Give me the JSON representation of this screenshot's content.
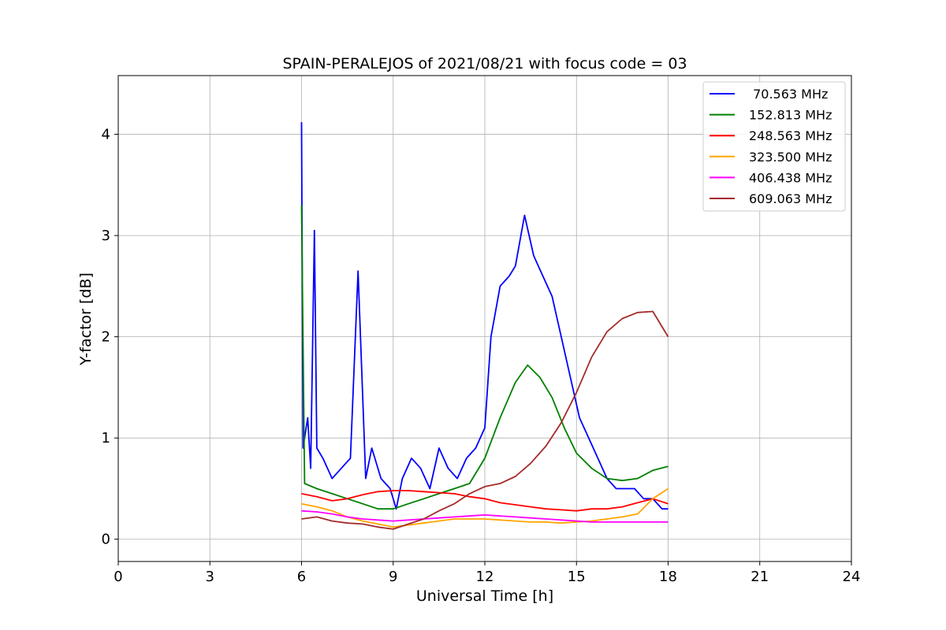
{
  "chart_data": {
    "type": "line",
    "title": "SPAIN-PERALEJOS of 2021/08/21 with focus code = 03",
    "xlabel": "Universal Time [h]",
    "ylabel": "Y-factor [dB]",
    "xlim": [
      0,
      24
    ],
    "ylim": [
      -0.22,
      4.58
    ],
    "xticks": [
      0,
      3,
      6,
      9,
      12,
      15,
      18,
      21,
      24
    ],
    "yticks": [
      0,
      1,
      2,
      3,
      4
    ],
    "grid": true,
    "legend_position": "top-right",
    "series": [
      {
        "name": " 70.563 MHz",
        "color": "#0000ff",
        "x": [
          6.0,
          6.05,
          6.2,
          6.3,
          6.42,
          6.5,
          6.7,
          7.0,
          7.3,
          7.6,
          7.85,
          8.1,
          8.3,
          8.6,
          8.9,
          9.1,
          9.3,
          9.6,
          9.9,
          10.2,
          10.5,
          10.8,
          11.1,
          11.4,
          11.7,
          12.0,
          12.2,
          12.5,
          12.8,
          13.0,
          13.3,
          13.6,
          13.9,
          14.2,
          14.5,
          14.8,
          15.1,
          15.4,
          15.7,
          16.0,
          16.3,
          16.6,
          16.9,
          17.2,
          17.5,
          17.8,
          18.0
        ],
        "y": [
          4.12,
          0.9,
          1.2,
          0.7,
          3.05,
          0.9,
          0.8,
          0.6,
          0.7,
          0.8,
          2.65,
          0.6,
          0.9,
          0.6,
          0.5,
          0.3,
          0.6,
          0.8,
          0.7,
          0.5,
          0.9,
          0.7,
          0.6,
          0.8,
          0.9,
          1.1,
          2.0,
          2.5,
          2.6,
          2.7,
          3.2,
          2.8,
          2.6,
          2.4,
          2.0,
          1.6,
          1.2,
          1.0,
          0.8,
          0.6,
          0.5,
          0.5,
          0.5,
          0.4,
          0.4,
          0.3,
          0.3
        ]
      },
      {
        "name": "152.813 MHz",
        "color": "#008000",
        "x": [
          6.0,
          6.1,
          6.5,
          7.0,
          7.5,
          8.0,
          8.5,
          9.0,
          9.5,
          10.0,
          10.5,
          11.0,
          11.5,
          12.0,
          12.5,
          13.0,
          13.4,
          13.8,
          14.2,
          14.6,
          15.0,
          15.5,
          16.0,
          16.5,
          17.0,
          17.5,
          18.0
        ],
        "y": [
          3.3,
          0.55,
          0.5,
          0.45,
          0.4,
          0.35,
          0.3,
          0.3,
          0.35,
          0.4,
          0.45,
          0.5,
          0.55,
          0.8,
          1.2,
          1.55,
          1.72,
          1.6,
          1.4,
          1.1,
          0.85,
          0.7,
          0.6,
          0.58,
          0.6,
          0.68,
          0.72
        ]
      },
      {
        "name": "248.563 MHz",
        "color": "#ff0000",
        "x": [
          6.0,
          6.5,
          7.0,
          7.5,
          8.0,
          8.5,
          9.0,
          9.5,
          10.0,
          10.5,
          11.0,
          11.5,
          12.0,
          12.5,
          13.0,
          13.5,
          14.0,
          14.5,
          15.0,
          15.5,
          16.0,
          16.5,
          17.0,
          17.5,
          18.0
        ],
        "y": [
          0.45,
          0.42,
          0.38,
          0.4,
          0.44,
          0.47,
          0.48,
          0.48,
          0.47,
          0.46,
          0.45,
          0.42,
          0.4,
          0.36,
          0.34,
          0.32,
          0.3,
          0.29,
          0.28,
          0.3,
          0.3,
          0.32,
          0.36,
          0.4,
          0.35
        ]
      },
      {
        "name": "323.500 MHz",
        "color": "#ffa500",
        "x": [
          6.0,
          6.5,
          7.0,
          7.5,
          8.0,
          8.5,
          9.0,
          9.5,
          10.0,
          10.5,
          11.0,
          11.5,
          12.0,
          12.5,
          13.0,
          13.5,
          14.0,
          14.5,
          15.0,
          15.5,
          16.0,
          16.5,
          17.0,
          17.5,
          18.0
        ],
        "y": [
          0.35,
          0.32,
          0.28,
          0.22,
          0.18,
          0.15,
          0.12,
          0.14,
          0.16,
          0.18,
          0.2,
          0.2,
          0.2,
          0.19,
          0.18,
          0.17,
          0.17,
          0.16,
          0.17,
          0.18,
          0.2,
          0.22,
          0.25,
          0.4,
          0.5
        ]
      },
      {
        "name": "406.438 MHz",
        "color": "#ff00ff",
        "x": [
          6.0,
          6.5,
          7.0,
          7.5,
          8.0,
          8.5,
          9.0,
          9.5,
          10.0,
          10.5,
          11.0,
          11.5,
          12.0,
          12.5,
          13.0,
          13.5,
          14.0,
          14.5,
          15.0,
          15.5,
          16.0,
          16.5,
          17.0,
          17.5,
          18.0
        ],
        "y": [
          0.28,
          0.27,
          0.25,
          0.22,
          0.2,
          0.19,
          0.18,
          0.19,
          0.2,
          0.21,
          0.22,
          0.23,
          0.24,
          0.23,
          0.22,
          0.21,
          0.2,
          0.19,
          0.18,
          0.17,
          0.17,
          0.17,
          0.17,
          0.17,
          0.17
        ]
      },
      {
        "name": "609.063 MHz",
        "color": "#a52a2a",
        "x": [
          6.0,
          6.5,
          7.0,
          7.5,
          8.0,
          8.5,
          9.0,
          9.5,
          10.0,
          10.5,
          11.0,
          11.5,
          12.0,
          12.5,
          13.0,
          13.5,
          14.0,
          14.5,
          15.0,
          15.5,
          16.0,
          16.5,
          17.0,
          17.5,
          18.0
        ],
        "y": [
          0.2,
          0.22,
          0.18,
          0.16,
          0.15,
          0.12,
          0.1,
          0.15,
          0.2,
          0.28,
          0.35,
          0.45,
          0.52,
          0.55,
          0.62,
          0.75,
          0.92,
          1.15,
          1.45,
          1.8,
          2.05,
          2.18,
          2.24,
          2.25,
          2.0
        ]
      }
    ]
  }
}
